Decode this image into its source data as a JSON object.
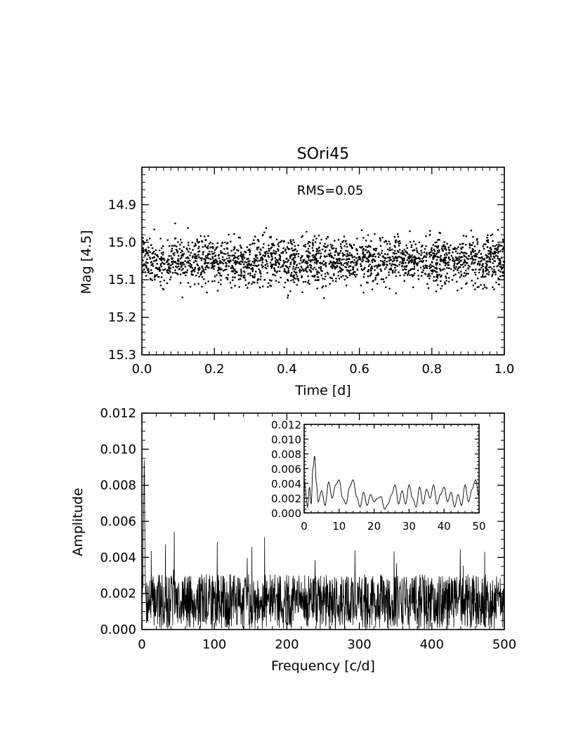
{
  "chart_data": [
    {
      "type": "scatter",
      "title": "SOri45",
      "xlabel": "Time [d]",
      "ylabel": "Mag [4.5]",
      "annotation": "RMS=0.05",
      "xlim": [
        0.0,
        1.0
      ],
      "ylim": [
        15.3,
        14.8
      ],
      "y_inverted": true,
      "xticks": [
        0.0,
        0.2,
        0.4,
        0.6,
        0.8,
        1.0
      ],
      "xtick_labels": [
        "0.0",
        "0.2",
        "0.4",
        "0.6",
        "0.8",
        "1.0"
      ],
      "yticks": [
        14.9,
        15.0,
        15.1,
        15.2,
        15.3
      ],
      "ytick_labels": [
        "14.9",
        "15.0",
        "15.1",
        "15.2",
        "15.3"
      ],
      "series": [
        {
          "mean": 15.05,
          "rms": 0.05,
          "x_range": [
            0.0,
            1.0
          ],
          "n_points": 2200
        }
      ]
    },
    {
      "type": "line",
      "xlabel": "Frequency [c/d]",
      "ylabel": "Amplitude",
      "xlim": [
        0,
        500
      ],
      "ylim": [
        0.0,
        0.012
      ],
      "xticks": [
        0,
        100,
        200,
        300,
        400,
        500
      ],
      "xtick_labels": [
        "0",
        "100",
        "200",
        "300",
        "400",
        "500"
      ],
      "yticks": [
        0.0,
        0.002,
        0.004,
        0.006,
        0.008,
        0.01,
        0.012
      ],
      "ytick_labels": [
        "0.000",
        "0.002",
        "0.004",
        "0.006",
        "0.008",
        "0.010",
        "0.012"
      ],
      "series": [
        {
          "peak_frequency": 3,
          "peak_amplitude": 0.0076,
          "typical_amplitude": 0.0018,
          "max_noise_amplitude": 0.0055
        }
      ],
      "inset": {
        "type": "line",
        "xlim": [
          0,
          50
        ],
        "ylim": [
          0.0,
          0.012
        ],
        "xticks": [
          0,
          10,
          20,
          30,
          40,
          50
        ],
        "xtick_labels": [
          "0",
          "10",
          "20",
          "30",
          "40",
          "50"
        ],
        "yticks": [
          0.0,
          0.002,
          0.004,
          0.006,
          0.008,
          0.01,
          0.012
        ],
        "ytick_labels": [
          "0.000",
          "0.002",
          "0.004",
          "0.006",
          "0.008",
          "0.010",
          "0.012"
        ],
        "x": [
          0,
          1,
          1.5,
          2,
          2.5,
          3,
          3.5,
          4,
          5,
          6,
          7,
          8,
          9,
          10,
          11,
          12,
          13,
          14,
          15,
          16,
          17,
          18,
          19,
          20,
          21,
          22,
          23,
          24,
          25,
          26,
          27,
          28,
          29,
          30,
          31,
          32,
          33,
          34,
          35,
          36,
          37,
          38,
          39,
          40,
          41,
          42,
          43,
          44,
          45,
          46,
          47,
          48,
          49,
          50
        ],
        "y": [
          0.0045,
          0.0008,
          0.0035,
          0.0012,
          0.006,
          0.0077,
          0.004,
          0.0015,
          0.003,
          0.001,
          0.0042,
          0.002,
          0.0038,
          0.0045,
          0.002,
          0.0012,
          0.0035,
          0.0045,
          0.0022,
          0.0008,
          0.0028,
          0.001,
          0.0025,
          0.0015,
          0.002,
          0.0022,
          0.0005,
          0.0012,
          0.0025,
          0.0038,
          0.0012,
          0.003,
          0.0012,
          0.0038,
          0.002,
          0.0008,
          0.0035,
          0.0012,
          0.0032,
          0.002,
          0.0038,
          0.0012,
          0.0025,
          0.0035,
          0.0015,
          0.0028,
          0.0008,
          0.0025,
          0.001,
          0.0038,
          0.0015,
          0.0032,
          0.0045,
          0.0022
        ]
      }
    }
  ]
}
